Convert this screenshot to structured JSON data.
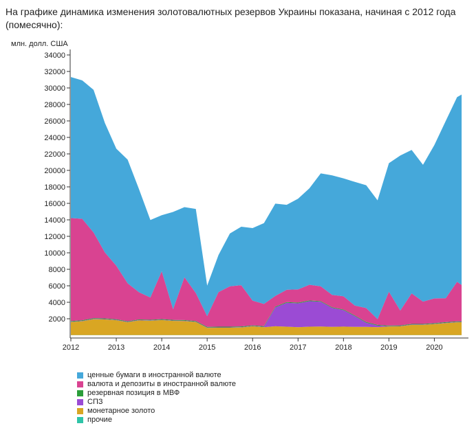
{
  "intro_text": "На графике динамика изменения золотовалютных резервов Украины показана, начиная с 2012 года (помесячно):",
  "chart_data": {
    "type": "area",
    "stacked": true,
    "ylabel": "млн. долл. США",
    "ylim": [
      0,
      35000
    ],
    "y_ticks": [
      2000,
      4000,
      6000,
      8000,
      10000,
      12000,
      14000,
      16000,
      18000,
      20000,
      22000,
      24000,
      26000,
      28000,
      30000,
      32000,
      34000
    ],
    "x_tick_labels": [
      "2012",
      "2013",
      "2014",
      "2015",
      "2016",
      "2017",
      "2018",
      "2019",
      "2020"
    ],
    "x_tick_years": [
      2012,
      2013,
      2014,
      2015,
      2016,
      2017,
      2018,
      2019,
      2020
    ],
    "x": [
      2012.0,
      2012.25,
      2012.5,
      2012.75,
      2013.0,
      2013.25,
      2013.5,
      2013.75,
      2014.0,
      2014.25,
      2014.5,
      2014.75,
      2015.0,
      2015.25,
      2015.5,
      2015.75,
      2016.0,
      2016.25,
      2016.5,
      2016.75,
      2017.0,
      2017.25,
      2017.5,
      2017.75,
      2018.0,
      2018.25,
      2018.5,
      2018.75,
      2019.0,
      2019.25,
      2019.5,
      2019.75,
      2020.0,
      2020.25,
      2020.5,
      2020.6
    ],
    "series": [
      {
        "name": "прочие",
        "color": "#2fc4a8",
        "values": [
          20,
          20,
          20,
          20,
          20,
          20,
          20,
          20,
          20,
          20,
          20,
          20,
          20,
          20,
          20,
          20,
          20,
          20,
          20,
          20,
          20,
          20,
          20,
          20,
          20,
          20,
          20,
          20,
          20,
          20,
          20,
          20,
          20,
          20,
          20,
          20
        ]
      },
      {
        "name": "монетарное золото",
        "color": "#d9a623",
        "values": [
          1580,
          1680,
          1930,
          1900,
          1800,
          1560,
          1780,
          1740,
          1820,
          1720,
          1700,
          1580,
          880,
          900,
          900,
          930,
          1060,
          960,
          1070,
          1020,
          960,
          1020,
          1040,
          1000,
          1030,
          1000,
          1000,
          960,
          1040,
          1060,
          1240,
          1240,
          1330,
          1450,
          1550,
          1560
        ]
      },
      {
        "name": "СПЗ",
        "color": "#9b4bd4",
        "values": [
          40,
          40,
          40,
          40,
          40,
          40,
          40,
          40,
          40,
          40,
          40,
          40,
          40,
          40,
          40,
          40,
          40,
          40,
          2300,
          2900,
          2900,
          3100,
          3000,
          2300,
          2000,
          1300,
          500,
          200,
          40,
          40,
          40,
          40,
          40,
          40,
          40,
          40
        ]
      },
      {
        "name": "резервная позиция в МВФ",
        "color": "#2a9d3a",
        "values": [
          80,
          80,
          80,
          80,
          80,
          80,
          80,
          80,
          80,
          80,
          80,
          80,
          80,
          80,
          80,
          80,
          80,
          80,
          80,
          80,
          80,
          80,
          80,
          80,
          80,
          80,
          80,
          80,
          80,
          80,
          80,
          80,
          80,
          80,
          80,
          80
        ]
      },
      {
        "name": "валюта и депозиты в иностранной валюте",
        "color": "#d94391",
        "values": [
          12500,
          12300,
          10400,
          8000,
          6500,
          4600,
          3300,
          2700,
          5800,
          1300,
          5200,
          3400,
          1300,
          4200,
          4900,
          5000,
          3000,
          2700,
          1300,
          1500,
          1600,
          1900,
          1800,
          1500,
          1600,
          1200,
          1700,
          700,
          4100,
          1800,
          3700,
          2700,
          3000,
          2900,
          4800,
          4400
        ]
      },
      {
        "name": "ценные бумаги в иностранной валюте",
        "color": "#45a8da",
        "values": [
          17100,
          16800,
          17300,
          15700,
          14200,
          15000,
          12500,
          9400,
          6800,
          11800,
          8500,
          10200,
          3700,
          4500,
          6400,
          7100,
          8800,
          9800,
          11200,
          10300,
          11000,
          11700,
          13700,
          14500,
          14300,
          15000,
          14900,
          14400,
          15600,
          18800,
          17400,
          16600,
          18600,
          21500,
          22400,
          23100
        ]
      }
    ]
  },
  "legend_order": [
    5,
    4,
    3,
    2,
    1,
    0
  ]
}
